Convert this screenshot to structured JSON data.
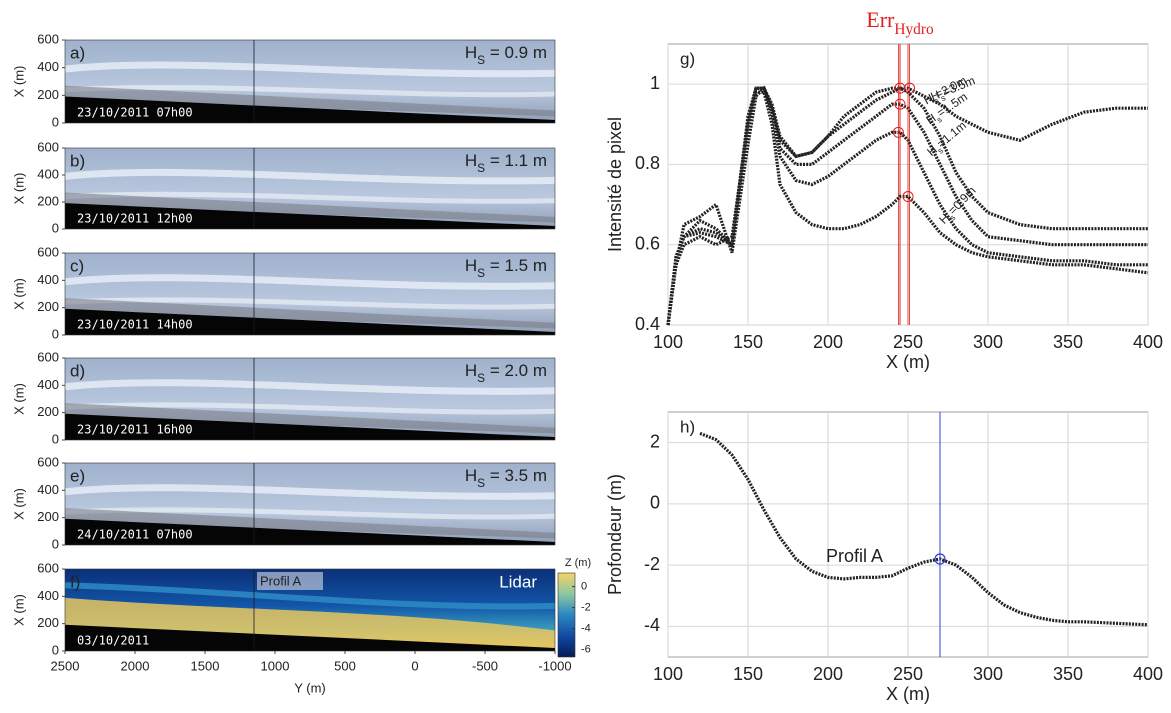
{
  "chart_data": [
    {
      "type": "image",
      "label": "a)",
      "annotation": [
        "H",
        "S",
        " = 0.9 m"
      ],
      "date": "23/10/2011 07h00",
      "ylabel": "X (m)",
      "ylim": [
        0,
        600
      ],
      "yticks": [
        0,
        200,
        400,
        600
      ],
      "xlim": [
        2500,
        -1000
      ],
      "vline_x": 1150
    },
    {
      "type": "image",
      "label": "b)",
      "annotation": [
        "H",
        "S",
        " = 1.1 m"
      ],
      "date": "23/10/2011 12h00",
      "ylabel": "X (m)",
      "ylim": [
        0,
        600
      ],
      "yticks": [
        0,
        200,
        400,
        600
      ],
      "xlim": [
        2500,
        -1000
      ],
      "vline_x": 1150
    },
    {
      "type": "image",
      "label": "c)",
      "annotation": [
        "H",
        "S",
        " = 1.5 m"
      ],
      "date": "23/10/2011 14h00",
      "ylabel": "X (m)",
      "ylim": [
        0,
        600
      ],
      "yticks": [
        0,
        200,
        400,
        600
      ],
      "xlim": [
        2500,
        -1000
      ],
      "vline_x": 1150
    },
    {
      "type": "image",
      "label": "d)",
      "annotation": [
        "H",
        "S",
        " = 2.0 m"
      ],
      "date": "23/10/2011 16h00",
      "ylabel": "X (m)",
      "ylim": [
        0,
        600
      ],
      "yticks": [
        0,
        200,
        400,
        600
      ],
      "xlim": [
        2500,
        -1000
      ],
      "vline_x": 1150
    },
    {
      "type": "image",
      "label": "e)",
      "annotation": [
        "H",
        "S",
        " = 3.5 m"
      ],
      "date": "24/10/2011 07h00",
      "ylabel": "X (m)",
      "ylim": [
        0,
        600
      ],
      "yticks": [
        0,
        200,
        400,
        600
      ],
      "xlim": [
        2500,
        -1000
      ],
      "vline_x": 1150
    },
    {
      "type": "lidar",
      "label": "f)",
      "annotation": "Lidar",
      "profile_label": "Profil A",
      "date": "03/10/2011",
      "ylabel": "X (m)",
      "xlabel": "Y (m)",
      "ylim": [
        0,
        600
      ],
      "yticks": [
        0,
        200,
        400,
        600
      ],
      "xlim": [
        2500,
        -1000
      ],
      "xticks": [
        2500,
        2000,
        1500,
        1000,
        500,
        0,
        -500,
        -1000
      ],
      "vline_x": 1150,
      "colorbar": {
        "title": "Z (m)",
        "lim": [
          -6.7,
          1.3
        ],
        "ticks": [
          0,
          -2,
          -4,
          -6
        ]
      }
    },
    {
      "type": "line",
      "label": "g)",
      "title": [
        "Err",
        "Hydro"
      ],
      "title_color": "#e02020",
      "xlabel": "X (m)",
      "ylabel": "Intensité de pixel",
      "xlim": [
        100,
        400
      ],
      "ylim": [
        0.4,
        1.1
      ],
      "xticks": [
        100,
        150,
        200,
        250,
        300,
        350,
        400
      ],
      "yticks": [
        0.4,
        0.6,
        0.8,
        1
      ],
      "grid": true,
      "peak_color": "#e02020",
      "x": [
        100,
        105,
        110,
        120,
        130,
        140,
        150,
        155,
        160,
        165,
        170,
        180,
        190,
        200,
        210,
        220,
        230,
        240,
        245,
        250,
        260,
        270,
        280,
        290,
        300,
        320,
        340,
        360,
        380,
        400
      ],
      "series": [
        {
          "name": [
            "H",
            "s",
            "=3.5m"
          ],
          "color": "#222222",
          "peak_x": 251,
          "peak_y": 0.99,
          "values": [
            0.4,
            0.55,
            0.65,
            0.67,
            0.7,
            0.58,
            0.85,
            0.97,
            0.99,
            0.95,
            0.87,
            0.82,
            0.83,
            0.87,
            0.92,
            0.95,
            0.98,
            0.99,
            0.99,
            0.99,
            0.97,
            0.95,
            0.92,
            0.9,
            0.88,
            0.86,
            0.9,
            0.93,
            0.94,
            0.94
          ]
        },
        {
          "name": [
            "H",
            "s",
            "=2.0m"
          ],
          "color": "#222222",
          "peak_x": 245,
          "peak_y": 0.99,
          "values": [
            0.4,
            0.56,
            0.62,
            0.66,
            0.64,
            0.6,
            0.9,
            0.99,
            0.99,
            0.94,
            0.86,
            0.82,
            0.83,
            0.87,
            0.9,
            0.93,
            0.96,
            0.98,
            0.99,
            0.98,
            0.94,
            0.87,
            0.78,
            0.72,
            0.68,
            0.65,
            0.64,
            0.64,
            0.64,
            0.64
          ]
        },
        {
          "name": [
            "H",
            "s",
            "=1.5m"
          ],
          "color": "#222222",
          "peak_x": 245,
          "peak_y": 0.95,
          "values": [
            0.4,
            0.57,
            0.62,
            0.64,
            0.63,
            0.6,
            0.91,
            0.99,
            0.99,
            0.93,
            0.84,
            0.8,
            0.8,
            0.83,
            0.86,
            0.89,
            0.92,
            0.95,
            0.95,
            0.94,
            0.88,
            0.8,
            0.72,
            0.66,
            0.62,
            0.61,
            0.6,
            0.6,
            0.6,
            0.6
          ]
        },
        {
          "name": [
            "H",
            "s",
            "=1.1m"
          ],
          "color": "#222222",
          "peak_x": 244,
          "peak_y": 0.88,
          "values": [
            0.4,
            0.57,
            0.62,
            0.63,
            0.62,
            0.6,
            0.92,
            0.99,
            0.99,
            0.93,
            0.82,
            0.76,
            0.75,
            0.77,
            0.8,
            0.83,
            0.86,
            0.88,
            0.88,
            0.86,
            0.78,
            0.7,
            0.64,
            0.6,
            0.58,
            0.57,
            0.56,
            0.56,
            0.55,
            0.55
          ]
        },
        {
          "name": [
            "H",
            "s",
            "=0.9m"
          ],
          "color": "#222222",
          "peak_x": 250,
          "peak_y": 0.72,
          "values": [
            0.4,
            0.55,
            0.6,
            0.62,
            0.6,
            0.62,
            0.9,
            0.98,
            0.98,
            0.9,
            0.75,
            0.68,
            0.65,
            0.64,
            0.64,
            0.65,
            0.67,
            0.7,
            0.72,
            0.72,
            0.68,
            0.63,
            0.6,
            0.58,
            0.57,
            0.56,
            0.55,
            0.55,
            0.54,
            0.53
          ]
        }
      ]
    },
    {
      "type": "line",
      "label": "h)",
      "annotation": "Profil A",
      "xlabel": "X (m)",
      "ylabel": "Profondeur (m)",
      "xlim": [
        100,
        400
      ],
      "ylim": [
        -5,
        3
      ],
      "xticks": [
        100,
        150,
        200,
        250,
        300,
        350,
        400
      ],
      "yticks": [
        -4,
        -2,
        0,
        2
      ],
      "grid": true,
      "marker": {
        "x": 270,
        "y": -1.8,
        "color": "#3040d0"
      },
      "x": [
        120,
        130,
        140,
        150,
        160,
        170,
        180,
        190,
        200,
        210,
        220,
        230,
        240,
        250,
        260,
        270,
        280,
        290,
        300,
        310,
        320,
        330,
        340,
        350,
        360,
        380,
        400
      ],
      "series": [
        {
          "color": "#222222",
          "values": [
            2.3,
            2.1,
            1.6,
            0.8,
            -0.2,
            -1.1,
            -1.8,
            -2.2,
            -2.4,
            -2.45,
            -2.4,
            -2.4,
            -2.35,
            -2.1,
            -1.9,
            -1.8,
            -2.0,
            -2.4,
            -2.9,
            -3.3,
            -3.55,
            -3.7,
            -3.8,
            -3.85,
            -3.85,
            -3.9,
            -3.95
          ]
        }
      ]
    }
  ]
}
